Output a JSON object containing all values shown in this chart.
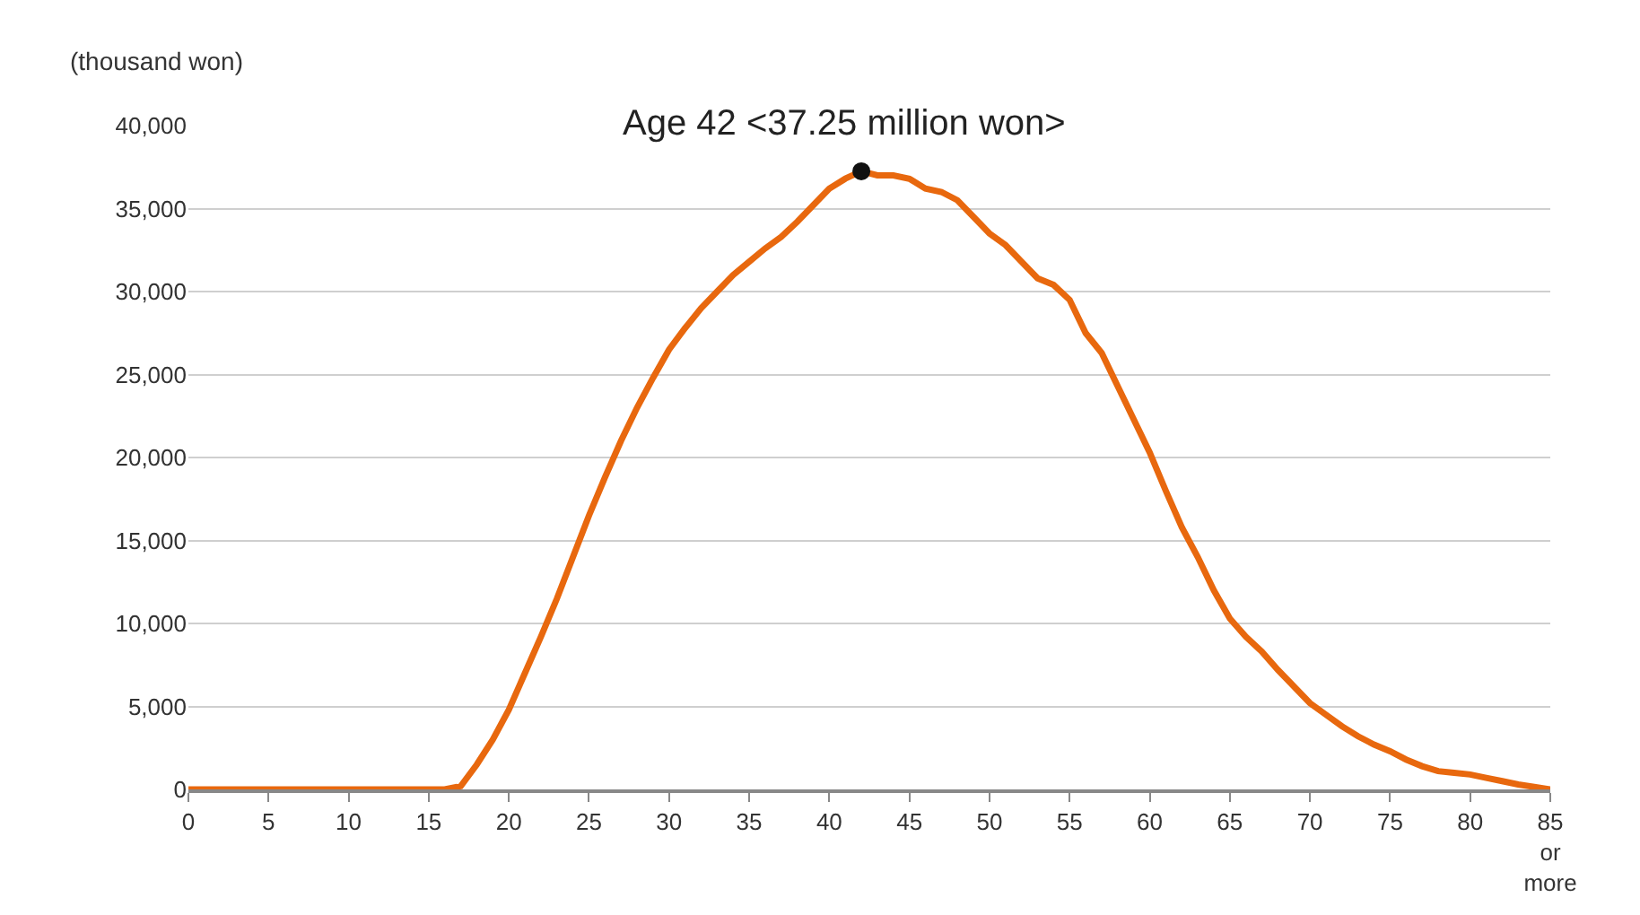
{
  "chart_data": {
    "type": "line",
    "ylabel": "(thousand won)",
    "x": [
      0,
      1,
      2,
      3,
      4,
      5,
      6,
      7,
      8,
      9,
      10,
      11,
      12,
      13,
      14,
      15,
      16,
      17,
      18,
      19,
      20,
      21,
      22,
      23,
      24,
      25,
      26,
      27,
      28,
      29,
      30,
      31,
      32,
      33,
      34,
      35,
      36,
      37,
      38,
      39,
      40,
      41,
      42,
      43,
      44,
      45,
      46,
      47,
      48,
      49,
      50,
      51,
      52,
      53,
      54,
      55,
      56,
      57,
      58,
      59,
      60,
      61,
      62,
      63,
      64,
      65,
      66,
      67,
      68,
      69,
      70,
      71,
      72,
      73,
      74,
      75,
      76,
      77,
      78,
      79,
      80,
      81,
      82,
      83,
      84,
      85
    ],
    "series": [
      {
        "color": "#e8680e",
        "marker": "none",
        "values": [
          0,
          0,
          0,
          0,
          0,
          0,
          0,
          0,
          0,
          0,
          0,
          0,
          0,
          0,
          0,
          0,
          0,
          200,
          1500,
          3000,
          4800,
          7000,
          9200,
          11500,
          14000,
          16500,
          18800,
          21000,
          23000,
          24800,
          26500,
          27800,
          29000,
          30000,
          31000,
          31800,
          32600,
          33300,
          34200,
          35200,
          36200,
          36800,
          37250,
          37000,
          37000,
          36800,
          36200,
          36000,
          35500,
          34500,
          33500,
          32800,
          31800,
          30800,
          30400,
          29500,
          27500,
          26300,
          24300,
          22300,
          20300,
          18000,
          15800,
          14000,
          12000,
          10300,
          9200,
          8300,
          7200,
          6200,
          5200,
          4500,
          3800,
          3200,
          2700,
          2300,
          1800,
          1400,
          1100,
          1000,
          900,
          700,
          500,
          300,
          150,
          0
        ]
      },
      {
        "type": "scatter",
        "color": "#111111",
        "marker": "circle",
        "x": [
          42
        ],
        "values": [
          37250
        ]
      }
    ],
    "annotations": [
      {
        "text": "Age 42 <37.25 million won>",
        "x": 42,
        "y": 37250
      }
    ],
    "xlim": [
      0,
      85
    ],
    "xticks": [
      0,
      5,
      10,
      15,
      20,
      25,
      30,
      35,
      40,
      45,
      50,
      55,
      60,
      65,
      70,
      75,
      80,
      {
        "value": 85,
        "label": "85\nor\nmore"
      }
    ],
    "ylim": [
      0,
      40000
    ],
    "yticks": [
      {
        "value": 0,
        "label": "0"
      },
      {
        "value": 5000,
        "label": "5,000"
      },
      {
        "value": 10000,
        "label": "10,000"
      },
      {
        "value": 15000,
        "label": "15,000"
      },
      {
        "value": 20000,
        "label": "20,000"
      },
      {
        "value": 25000,
        "label": "25,000"
      },
      {
        "value": 30000,
        "label": "30,000"
      },
      {
        "value": 35000,
        "label": "35,000"
      },
      {
        "value": 40000,
        "label": "40,000"
      }
    ],
    "grid": "y"
  }
}
